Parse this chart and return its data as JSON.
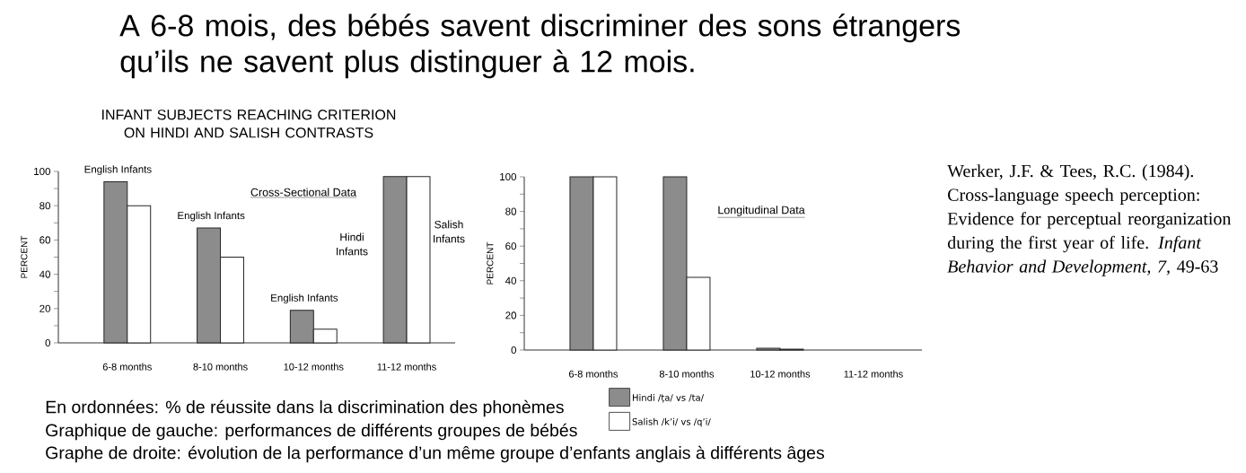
{
  "chart_data": [
    {
      "type": "bar",
      "title": "A 6-8 mois, des bébés savent discriminer des sons étrangers qu’ils ne savent plus distinguer à 12 mois.",
      "subtitle": "INFANT SUBJECTS REACHING CRITERION ON HINDI AND SALISH CONTRASTS",
      "ylabel": "PERCENT",
      "categories": [
        "6-8 months",
        "8-10 months",
        "10-12 months",
        "11-12 months"
      ],
      "series": [
        {
          "name": "Hindi /ṭa/ vs /ta/",
          "color": "#8c8c8c",
          "values": [
            94,
            67,
            19,
            97
          ]
        },
        {
          "name": "Salish /kʼi/ vs /qʼi/",
          "color": "#ffffff",
          "values": [
            80,
            50,
            8,
            97
          ]
        }
      ],
      "ylim": [
        0,
        100
      ],
      "yticks": [
        0,
        {
          "value": 10,
          "label": null
        },
        20,
        {
          "value": 30,
          "label": null
        },
        40,
        {
          "value": 50,
          "label": null
        },
        60,
        {
          "value": 70,
          "label": null
        },
        80,
        {
          "value": 90,
          "label": null
        },
        100
      ],
      "legend": "bottom",
      "annotations": [
        {
          "text": "English Infants",
          "x": "6-8 months",
          "y": 94
        },
        {
          "text": "English Infants",
          "x": "8-10 months",
          "y": 67
        },
        {
          "text": "English Infants",
          "x": "10-12 months",
          "y": 19
        },
        "Cross-Sectional Data",
        "Hindi Infants",
        "Salish Infants",
        "En ordonnées: % de réussite dans la discrimination des phonèmes",
        "Graphique de gauche: performances de différents groupes de bébés",
        "Graphe de droite: évolution de la performance d’un même groupe d’enfants anglais à différents âges"
      ]
    },
    {
      "type": "bar",
      "ylabel": "PERCENT",
      "categories": [
        "6-8 months",
        "8-10 months",
        "10-12 months",
        "11-12 months"
      ],
      "series": [
        {
          "color": "#8c8c8c",
          "values": [
            100,
            100,
            1,
            null
          ]
        },
        {
          "color": "#ffffff",
          "values": [
            100,
            42,
            0.5,
            null
          ]
        }
      ],
      "ylim": [
        0,
        100
      ],
      "yticks": [
        0,
        {
          "value": 10,
          "label": null
        },
        20,
        {
          "value": 30,
          "label": null
        },
        40,
        {
          "value": 50,
          "label": null
        },
        60,
        {
          "value": 70,
          "label": null
        },
        80,
        {
          "value": 90,
          "label": null
        },
        100
      ],
      "annotations": [
        "Longitudinal Data",
        "Werker, J.F. & Tees, R.C. (1984). Cross-language speech perception: Evidence for perceptual reorganization during the first year of life. *Infant Behavior and Development, 7,* 49-63"
      ]
    }
  ]
}
